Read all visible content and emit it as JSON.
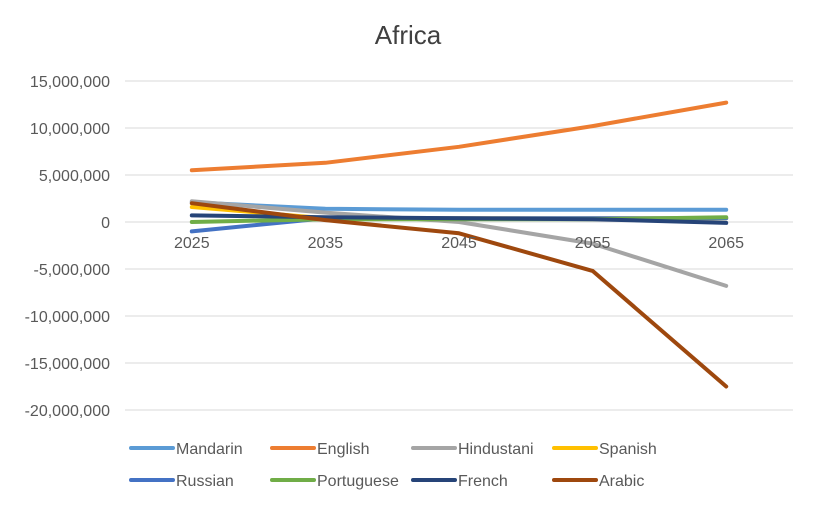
{
  "chart_data": {
    "type": "line",
    "title": "Africa",
    "xlabel": "",
    "ylabel": "",
    "categories": [
      "2025",
      "2035",
      "2045",
      "2055",
      "2065"
    ],
    "y_ticks": [
      "15,000,000",
      "10,000,000",
      "5,000,000",
      "0",
      "-5,000,000",
      "-10,000,000",
      "-15,000,000",
      "-20,000,000"
    ],
    "ylim": [
      -20000000,
      15000000
    ],
    "grid": true,
    "legend_position": "bottom",
    "series": [
      {
        "name": "Mandarin",
        "color": "#5B9BD5",
        "values": [
          2100000,
          1400000,
          1300000,
          1300000,
          1300000
        ]
      },
      {
        "name": "English",
        "color": "#ED7D31",
        "values": [
          5500000,
          6300000,
          8000000,
          10200000,
          12700000
        ]
      },
      {
        "name": "Hindustani",
        "color": "#A5A5A5",
        "values": [
          2200000,
          1000000,
          0,
          -2300000,
          -6800000
        ]
      },
      {
        "name": "Spanish",
        "color": "#FFC000",
        "values": [
          1600000,
          400000,
          400000,
          400000,
          400000
        ]
      },
      {
        "name": "Russian",
        "color": "#4472C4",
        "values": [
          -1000000,
          400000,
          400000,
          400000,
          400000
        ]
      },
      {
        "name": "Portuguese",
        "color": "#70AD47",
        "values": [
          0,
          300000,
          300000,
          300000,
          500000
        ]
      },
      {
        "name": "French",
        "color": "#264478",
        "values": [
          700000,
          500000,
          400000,
          300000,
          -100000
        ]
      },
      {
        "name": "Arabic",
        "color": "#9E480E",
        "values": [
          2000000,
          200000,
          -1200000,
          -5200000,
          -17500000
        ]
      }
    ]
  }
}
